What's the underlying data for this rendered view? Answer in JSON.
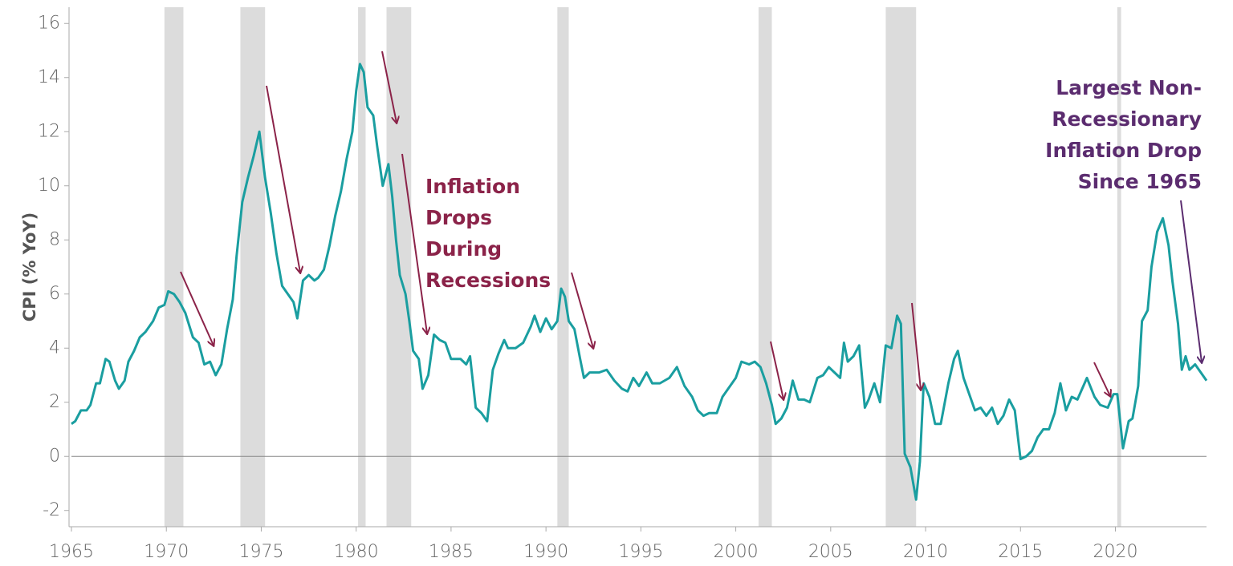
{
  "chart_data": {
    "type": "line",
    "y_label": "CPI (% YoY)",
    "color": "#1a9ea0",
    "recession_color": "#dcdcdc",
    "xlim": [
      1965,
      2024.8
    ],
    "xticks": [
      1965,
      1970,
      1975,
      1980,
      1985,
      1990,
      1995,
      2000,
      2005,
      2010,
      2015,
      2020
    ],
    "ylim": [
      -2.6,
      16.6
    ],
    "yticks": [
      -2,
      0,
      2,
      4,
      6,
      8,
      10,
      12,
      14,
      16
    ],
    "recessions": [
      [
        1969.9,
        1970.9
      ],
      [
        1973.9,
        1975.2
      ],
      [
        1980.1,
        1980.5
      ],
      [
        1981.6,
        1982.9
      ],
      [
        1990.6,
        1991.2
      ],
      [
        2001.2,
        2001.9
      ],
      [
        2007.9,
        2009.5
      ],
      [
        2020.1,
        2020.3
      ]
    ],
    "x": [
      1965.0,
      1965.2,
      1965.5,
      1965.8,
      1966.0,
      1966.3,
      1966.5,
      1966.8,
      1967.0,
      1967.3,
      1967.5,
      1967.8,
      1968.0,
      1968.3,
      1968.6,
      1968.9,
      1969.3,
      1969.6,
      1969.9,
      1970.1,
      1970.4,
      1970.7,
      1971.0,
      1971.4,
      1971.7,
      1972.0,
      1972.3,
      1972.6,
      1972.9,
      1973.2,
      1973.5,
      1973.7,
      1974.0,
      1974.3,
      1974.6,
      1974.9,
      1975.2,
      1975.5,
      1975.8,
      1976.1,
      1976.4,
      1976.7,
      1976.9,
      1977.2,
      1977.5,
      1977.8,
      1978.0,
      1978.3,
      1978.6,
      1978.9,
      1979.2,
      1979.5,
      1979.8,
      1980.0,
      1980.2,
      1980.4,
      1980.6,
      1980.9,
      1981.1,
      1981.4,
      1981.7,
      1981.9,
      1982.1,
      1982.3,
      1982.6,
      1982.8,
      1983.0,
      1983.3,
      1983.5,
      1983.8,
      1984.1,
      1984.4,
      1984.7,
      1985.0,
      1985.5,
      1985.8,
      1986.0,
      1986.3,
      1986.6,
      1986.9,
      1987.2,
      1987.5,
      1987.8,
      1988.0,
      1988.4,
      1988.8,
      1989.2,
      1989.4,
      1989.7,
      1990.0,
      1990.3,
      1990.6,
      1990.8,
      1991.0,
      1991.2,
      1991.5,
      1991.8,
      1992.0,
      1992.3,
      1992.8,
      1993.2,
      1993.6,
      1994.0,
      1994.3,
      1994.6,
      1994.9,
      1995.3,
      1995.6,
      1996.0,
      1996.5,
      1996.9,
      1997.3,
      1997.7,
      1998.0,
      1998.3,
      1998.6,
      1999.0,
      1999.3,
      1999.6,
      2000.0,
      2000.3,
      2000.7,
      2001.0,
      2001.3,
      2001.6,
      2001.9,
      2002.1,
      2002.4,
      2002.7,
      2003.0,
      2003.3,
      2003.6,
      2003.9,
      2004.3,
      2004.6,
      2004.9,
      2005.2,
      2005.5,
      2005.7,
      2005.9,
      2006.2,
      2006.5,
      2006.8,
      2007.0,
      2007.3,
      2007.6,
      2007.9,
      2008.2,
      2008.5,
      2008.7,
      2008.9,
      2009.2,
      2009.5,
      2009.7,
      2009.9,
      2010.2,
      2010.5,
      2010.8,
      2011.2,
      2011.5,
      2011.7,
      2012.0,
      2012.3,
      2012.6,
      2012.9,
      2013.2,
      2013.5,
      2013.8,
      2014.1,
      2014.4,
      2014.7,
      2015.0,
      2015.3,
      2015.6,
      2015.9,
      2016.2,
      2016.5,
      2016.8,
      2017.1,
      2017.4,
      2017.7,
      2018.0,
      2018.5,
      2018.9,
      2019.2,
      2019.6,
      2019.9,
      2020.1,
      2020.4,
      2020.7,
      2020.9,
      2021.2,
      2021.4,
      2021.7,
      2021.9,
      2022.2,
      2022.5,
      2022.8,
      2023.0,
      2023.3,
      2023.5,
      2023.7,
      2023.9,
      2024.2,
      2024.5,
      2024.8
    ],
    "values": [
      1.2,
      1.3,
      1.7,
      1.7,
      1.9,
      2.7,
      2.7,
      3.6,
      3.5,
      2.8,
      2.5,
      2.8,
      3.5,
      3.9,
      4.4,
      4.6,
      5.0,
      5.5,
      5.6,
      6.1,
      6.0,
      5.7,
      5.3,
      4.4,
      4.2,
      3.4,
      3.5,
      3.0,
      3.4,
      4.7,
      5.8,
      7.4,
      9.4,
      10.3,
      11.1,
      12.0,
      10.3,
      9.0,
      7.5,
      6.3,
      6.0,
      5.7,
      5.1,
      6.5,
      6.7,
      6.5,
      6.6,
      6.9,
      7.8,
      8.9,
      9.8,
      11.0,
      12.0,
      13.5,
      14.5,
      14.2,
      12.9,
      12.6,
      11.5,
      10.0,
      10.8,
      9.6,
      8.0,
      6.7,
      6.0,
      5.0,
      3.9,
      3.6,
      2.5,
      3.0,
      4.5,
      4.3,
      4.2,
      3.6,
      3.6,
      3.4,
      3.7,
      1.8,
      1.6,
      1.3,
      3.2,
      3.8,
      4.3,
      4.0,
      4.0,
      4.2,
      4.8,
      5.2,
      4.6,
      5.1,
      4.7,
      5.0,
      6.2,
      5.9,
      5.0,
      4.7,
      3.6,
      2.9,
      3.1,
      3.1,
      3.2,
      2.8,
      2.5,
      2.4,
      2.9,
      2.6,
      3.1,
      2.7,
      2.7,
      2.9,
      3.3,
      2.6,
      2.2,
      1.7,
      1.5,
      1.6,
      1.6,
      2.2,
      2.5,
      2.9,
      3.5,
      3.4,
      3.5,
      3.3,
      2.7,
      1.9,
      1.2,
      1.4,
      1.8,
      2.8,
      2.1,
      2.1,
      2.0,
      2.9,
      3.0,
      3.3,
      3.1,
      2.9,
      4.2,
      3.5,
      3.7,
      4.1,
      1.8,
      2.1,
      2.7,
      2.0,
      4.1,
      4.0,
      5.2,
      4.9,
      0.1,
      -0.4,
      -1.6,
      -0.2,
      2.7,
      2.2,
      1.2,
      1.2,
      2.7,
      3.6,
      3.9,
      2.9,
      2.3,
      1.7,
      1.8,
      1.5,
      1.8,
      1.2,
      1.5,
      2.1,
      1.7,
      -0.1,
      0,
      0.2,
      0.7,
      1.0,
      1.0,
      1.6,
      2.7,
      1.7,
      2.2,
      2.1,
      2.9,
      2.2,
      1.9,
      1.8,
      2.3,
      2.3,
      0.3,
      1.3,
      1.4,
      2.6,
      5.0,
      5.4,
      7.0,
      8.3,
      8.8,
      7.8,
      6.5,
      4.9,
      3.2,
      3.7,
      3.2,
      3.4,
      3.1,
      2.8
    ],
    "annotations": [
      {
        "lines": [
          "Inflation",
          "Drops",
          "During",
          "Recessions"
        ],
        "color": "#8b2349"
      },
      {
        "lines": [
          "Largest Non-",
          "Recessionary",
          "Inflation Drop",
          "Since 1965"
        ],
        "color": "#5b2c6f"
      }
    ]
  }
}
